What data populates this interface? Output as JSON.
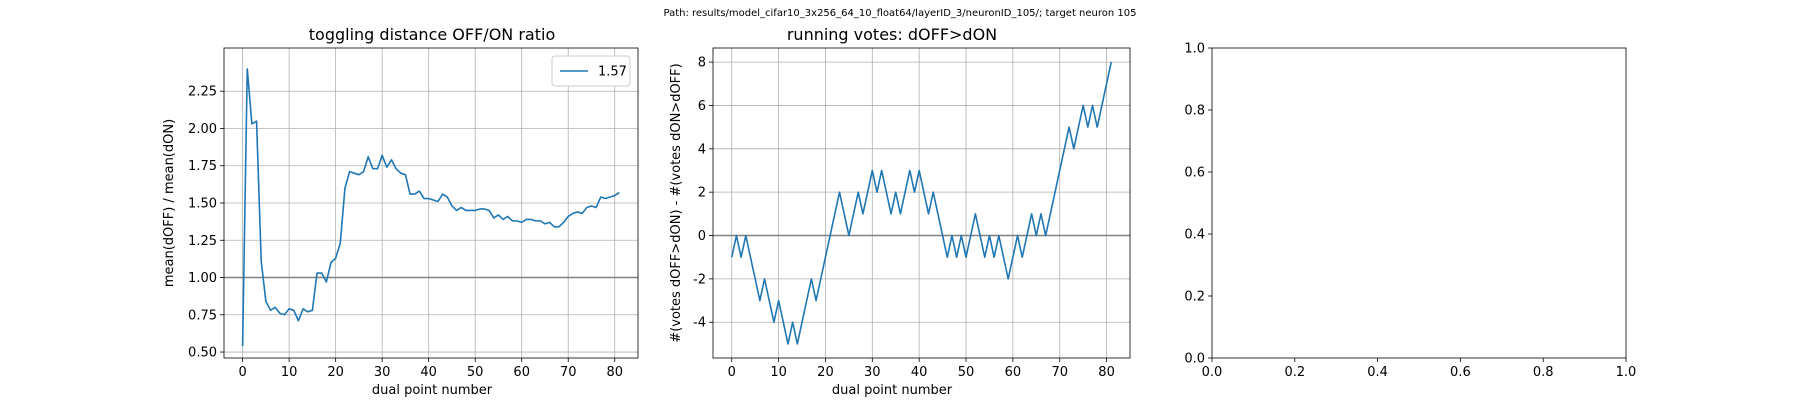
{
  "figure": {
    "suptitle": "Path: results/model_cifar10_3x256_64_10_float64/layerID_3/neuronID_105/; target neuron 105"
  },
  "colors": {
    "series": "#1f77b4",
    "hline": "#808080",
    "grid": "#b0b0b0",
    "axis": "#000000"
  },
  "chart_data": [
    {
      "type": "line",
      "title": "toggling distance OFF/ON ratio",
      "xlabel": "dual point number",
      "ylabel": "mean(dOFF) / mean(dON)",
      "xlim": [
        -4,
        85
      ],
      "ylim": [
        0.46,
        2.54
      ],
      "xticks": [
        0,
        10,
        20,
        30,
        40,
        50,
        60,
        70,
        80
      ],
      "yticks": [
        0.5,
        0.75,
        1.0,
        1.25,
        1.5,
        1.75,
        2.0,
        2.25
      ],
      "ytick_labels": [
        "0.50",
        "0.75",
        "1.00",
        "1.25",
        "1.50",
        "1.75",
        "2.00",
        "2.25"
      ],
      "grid": true,
      "hline": 1.0,
      "legend": {
        "position": "top-right",
        "entries": [
          "1.57"
        ]
      },
      "series": [
        {
          "name": "1.57",
          "x": [
            0,
            1,
            2,
            3,
            4,
            5,
            6,
            7,
            8,
            9,
            10,
            11,
            12,
            13,
            14,
            15,
            16,
            17,
            18,
            19,
            20,
            21,
            22,
            23,
            24,
            25,
            26,
            27,
            28,
            29,
            30,
            31,
            32,
            33,
            34,
            35,
            36,
            37,
            38,
            39,
            40,
            41,
            42,
            43,
            44,
            45,
            46,
            47,
            48,
            49,
            50,
            51,
            52,
            53,
            54,
            55,
            56,
            57,
            58,
            59,
            60,
            61,
            62,
            63,
            64,
            65,
            66,
            67,
            68,
            69,
            70,
            71,
            72,
            73,
            74,
            75,
            76,
            77,
            78,
            79,
            80,
            81
          ],
          "values": [
            0.54,
            2.4,
            2.03,
            2.05,
            1.11,
            0.84,
            0.78,
            0.8,
            0.76,
            0.75,
            0.79,
            0.78,
            0.71,
            0.79,
            0.77,
            0.78,
            1.03,
            1.03,
            0.97,
            1.1,
            1.13,
            1.23,
            1.6,
            1.71,
            1.7,
            1.69,
            1.71,
            1.81,
            1.73,
            1.73,
            1.82,
            1.74,
            1.79,
            1.73,
            1.7,
            1.69,
            1.56,
            1.56,
            1.58,
            1.53,
            1.53,
            1.52,
            1.51,
            1.56,
            1.54,
            1.48,
            1.45,
            1.47,
            1.45,
            1.45,
            1.45,
            1.46,
            1.46,
            1.45,
            1.4,
            1.42,
            1.39,
            1.41,
            1.38,
            1.38,
            1.37,
            1.39,
            1.39,
            1.38,
            1.38,
            1.36,
            1.37,
            1.34,
            1.34,
            1.37,
            1.41,
            1.43,
            1.44,
            1.43,
            1.47,
            1.48,
            1.47,
            1.54,
            1.53,
            1.54,
            1.55,
            1.57
          ]
        }
      ]
    },
    {
      "type": "line",
      "title": "running votes: dOFF>dON",
      "xlabel": "dual point number",
      "ylabel": "#(votes dOFF>dON) - #(votes dON>dOFF)",
      "xlim": [
        -4,
        85
      ],
      "ylim": [
        -5.65,
        8.65
      ],
      "xticks": [
        0,
        10,
        20,
        30,
        40,
        50,
        60,
        70,
        80
      ],
      "yticks": [
        -4,
        -2,
        0,
        2,
        4,
        6,
        8
      ],
      "grid": true,
      "hline": 0,
      "series": [
        {
          "x": [
            0,
            1,
            2,
            3,
            4,
            5,
            6,
            7,
            8,
            9,
            10,
            11,
            12,
            13,
            14,
            15,
            16,
            17,
            18,
            19,
            20,
            21,
            22,
            23,
            24,
            25,
            26,
            27,
            28,
            29,
            30,
            31,
            32,
            33,
            34,
            35,
            36,
            37,
            38,
            39,
            40,
            41,
            42,
            43,
            44,
            45,
            46,
            47,
            48,
            49,
            50,
            51,
            52,
            53,
            54,
            55,
            56,
            57,
            58,
            59,
            60,
            61,
            62,
            63,
            64,
            65,
            66,
            67,
            68,
            69,
            70,
            71,
            72,
            73,
            74,
            75,
            76,
            77,
            78,
            79,
            80,
            81
          ],
          "values": [
            -1,
            0,
            -1,
            0,
            -1,
            -2,
            -3,
            -2,
            -3,
            -4,
            -3,
            -4,
            -5,
            -4,
            -5,
            -4,
            -3,
            -2,
            -3,
            -2,
            -1,
            0,
            1,
            2,
            1,
            0,
            1,
            2,
            1,
            2,
            3,
            2,
            3,
            2,
            1,
            2,
            1,
            2,
            3,
            2,
            3,
            2,
            1,
            2,
            1,
            0,
            -1,
            0,
            -1,
            0,
            -1,
            0,
            1,
            0,
            -1,
            0,
            -1,
            0,
            -1,
            -2,
            -1,
            0,
            -1,
            0,
            1,
            0,
            1,
            0,
            1,
            2,
            3,
            4,
            5,
            4,
            5,
            6,
            5,
            6,
            5,
            6,
            7,
            8
          ]
        }
      ]
    },
    {
      "type": "line",
      "title": "",
      "xlim": [
        0,
        1
      ],
      "ylim": [
        0,
        1
      ],
      "xticks": [
        0,
        0.2,
        0.4,
        0.6,
        0.8,
        1.0
      ],
      "xtick_labels": [
        "0.0",
        "0.2",
        "0.4",
        "0.6",
        "0.8",
        "1.0"
      ],
      "yticks": [
        0,
        0.2,
        0.4,
        0.6,
        0.8,
        1.0
      ],
      "ytick_labels": [
        "0.0",
        "0.2",
        "0.4",
        "0.6",
        "0.8",
        "1.0"
      ],
      "grid": false,
      "series": []
    }
  ]
}
